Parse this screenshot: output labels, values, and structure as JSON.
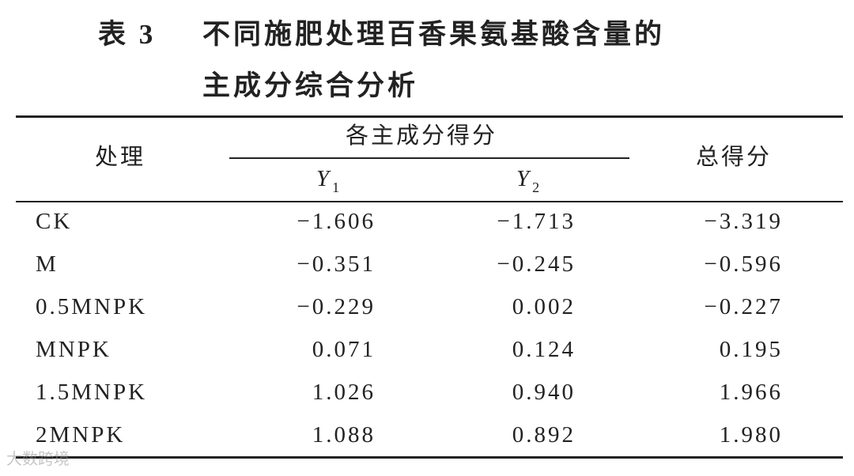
{
  "table": {
    "label": "表 3",
    "title_lines": [
      "不同施肥处理百香果氨基酸含量的",
      "主成分综合分析"
    ],
    "header": {
      "treatment": "处理",
      "group": "各主成分得分",
      "sub_columns": [
        {
          "symbol": "Y",
          "subscript": "1"
        },
        {
          "symbol": "Y",
          "subscript": "2"
        }
      ],
      "total": "总得分"
    },
    "rows": [
      [
        "CK",
        "−1.606",
        "−1.713",
        "−3.319"
      ],
      [
        "M",
        "−0.351",
        "−0.245",
        "−0.596"
      ],
      [
        "0.5MNPK",
        "−0.229",
        "0.002",
        "−0.227"
      ],
      [
        "MNPK",
        "0.071",
        "0.124",
        "0.195"
      ],
      [
        "1.5MNPK",
        "1.026",
        "0.940",
        "1.966"
      ],
      [
        "2MNPK",
        "1.088",
        "0.892",
        "1.980"
      ]
    ],
    "watermark": "大数跨境"
  }
}
